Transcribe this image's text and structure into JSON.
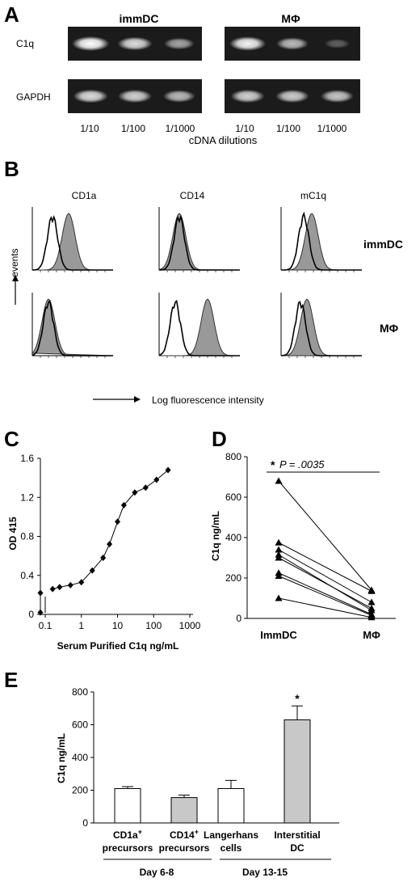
{
  "panelA": {
    "label": "A",
    "group_left": "immDC",
    "group_right": "MΦ",
    "row_labels": [
      "C1q",
      "GAPDH"
    ],
    "dilutions": [
      "1/10",
      "1/100",
      "1/1000"
    ],
    "xlabel": "cDNA dilutions",
    "band_intensity": {
      "immDC_C1q": [
        1.0,
        0.85,
        0.6
      ],
      "MPhi_C1q": [
        0.95,
        0.7,
        0.3
      ],
      "immDC_GAPDH": [
        0.85,
        0.8,
        0.7
      ],
      "MPhi_GAPDH": [
        0.8,
        0.78,
        0.75
      ]
    }
  },
  "panelB": {
    "label": "B",
    "markers": [
      "CD1a",
      "CD14",
      "mC1q"
    ],
    "rows": [
      "immDC",
      "MΦ"
    ],
    "ylabel": "events",
    "xlabel": "Log fluorescence intensity"
  },
  "chart_data": [
    {
      "panel": "C",
      "type": "line",
      "title": "",
      "xlabel": "Serum Purified C1q ng/mL",
      "ylabel": "OD 415",
      "xscale": "log",
      "xlim": [
        0.1,
        1000
      ],
      "ylim": [
        0,
        1.6
      ],
      "x_ticks": [
        "0.1",
        "1",
        "10",
        "100",
        "1000"
      ],
      "y_ticks": [
        "0",
        "0.4",
        "0.8",
        "1.2",
        "1.6"
      ],
      "x": [
        0.16,
        0.25,
        0.5,
        1,
        2,
        4,
        6,
        10,
        15,
        30,
        60,
        120,
        250
      ],
      "y": [
        0.26,
        0.28,
        0.3,
        0.33,
        0.45,
        0.58,
        0.72,
        0.95,
        1.12,
        1.25,
        1.3,
        1.38,
        1.48
      ],
      "extra_points": [
        {
          "x": 0.1,
          "y": 0.22
        },
        {
          "x": 0.1,
          "y": 0.02
        }
      ]
    },
    {
      "panel": "D",
      "type": "line",
      "title": "",
      "categories": [
        "ImmDC",
        "MΦ"
      ],
      "ylabel": "C1q ng/mL",
      "ylim": [
        0,
        800
      ],
      "y_ticks": [
        "0",
        "200",
        "400",
        "600",
        "800"
      ],
      "annotation": {
        "star": "*",
        "text": "P = .0035"
      },
      "pairs": [
        [
          680,
          140
        ],
        [
          375,
          135
        ],
        [
          340,
          80
        ],
        [
          315,
          40
        ],
        [
          300,
          50
        ],
        [
          225,
          20
        ],
        [
          210,
          15
        ],
        [
          100,
          5
        ]
      ]
    },
    {
      "panel": "E",
      "type": "bar",
      "title": "",
      "ylabel": "C1q ng/mL",
      "ylim": [
        0,
        800
      ],
      "y_ticks": [
        "0",
        "200",
        "400",
        "600",
        "800"
      ],
      "categories": [
        [
          "CD1a",
          "+",
          "precursors"
        ],
        [
          "CD14",
          "+",
          "precursors"
        ],
        [
          "Langerhans",
          "",
          "cells"
        ],
        [
          "Interstitial",
          "",
          "DC"
        ]
      ],
      "values": [
        210,
        155,
        210,
        630
      ],
      "errors": [
        12,
        15,
        50,
        85
      ],
      "colors": [
        "#ffffff",
        "#c8c8c8",
        "#ffffff",
        "#c8c8c8"
      ],
      "significant": [
        false,
        false,
        false,
        true
      ],
      "significance_mark": "*",
      "group_labels": [
        "Day 6-8",
        "Day 13-15"
      ]
    }
  ]
}
